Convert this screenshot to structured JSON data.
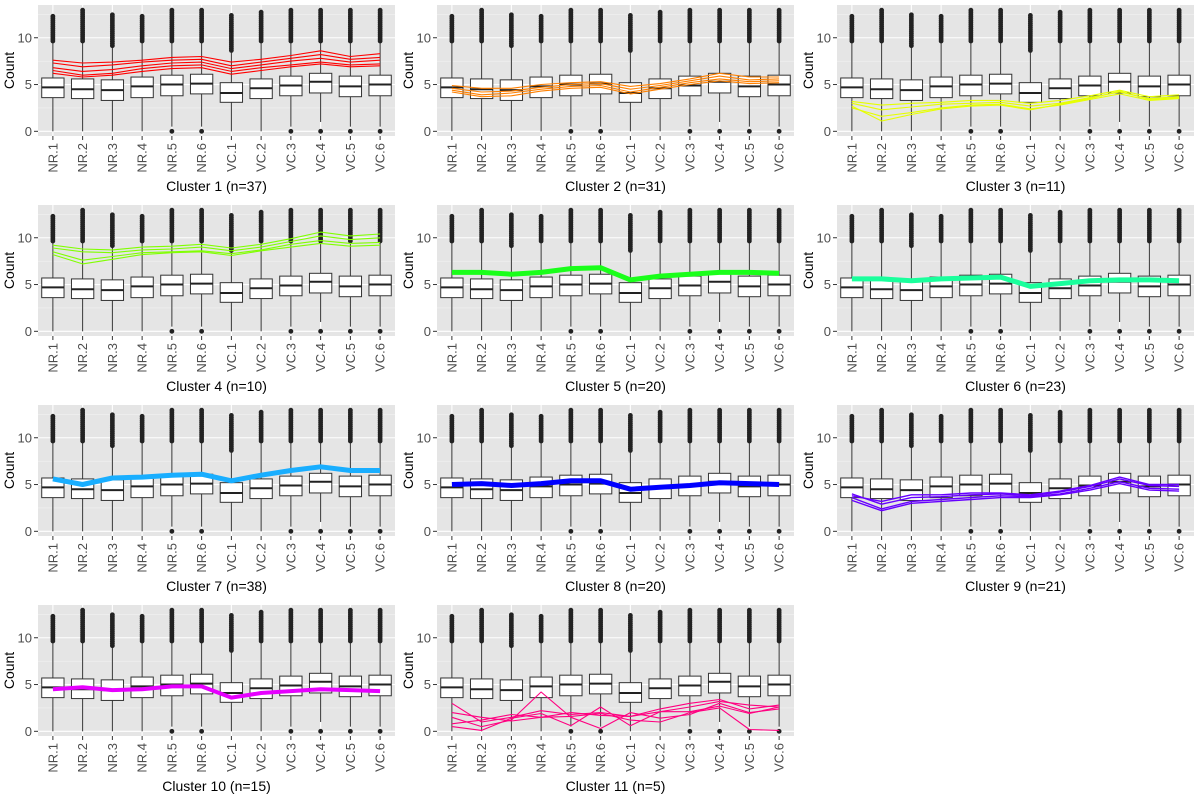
{
  "chart_data": {
    "type": "line",
    "layout": "small-multiples-grid",
    "grid": true,
    "ylabel": "Count",
    "categories": [
      "NR.1",
      "NR.2",
      "NR.3",
      "NR.4",
      "NR.5",
      "NR.6",
      "VC.1",
      "VC.2",
      "VC.3",
      "VC.4",
      "VC.5",
      "VC.6"
    ],
    "ylim": [
      -0.5,
      13.5
    ],
    "yticks": [
      0,
      5,
      10
    ],
    "boxplot_background": {
      "q1": [
        3.6,
        3.5,
        3.3,
        3.6,
        3.8,
        4.0,
        3.1,
        3.5,
        3.8,
        4.1,
        3.7,
        3.8
      ],
      "median": [
        4.7,
        4.5,
        4.4,
        4.8,
        5.0,
        5.1,
        4.1,
        4.6,
        4.9,
        5.3,
        4.8,
        5.0
      ],
      "q3": [
        5.7,
        5.6,
        5.5,
        5.8,
        6.0,
        6.1,
        5.2,
        5.6,
        5.9,
        6.2,
        5.9,
        6.0
      ],
      "whisker_low": [
        0,
        0,
        0,
        0,
        0.5,
        0.5,
        0,
        0,
        0.5,
        1.0,
        0.5,
        0.5
      ],
      "whisker_high": [
        9.5,
        9.5,
        9.0,
        9.5,
        9.5,
        9.5,
        8.5,
        9.5,
        9.5,
        9.5,
        9.5,
        9.5
      ],
      "outlier_low": [
        null,
        null,
        null,
        null,
        0,
        0,
        null,
        null,
        0,
        0,
        0,
        0
      ],
      "outlier_max": [
        12.5,
        13.0,
        12.5,
        12.5,
        13.0,
        13.0,
        12.5,
        12.8,
        13.0,
        13.0,
        13.0,
        13.0
      ]
    },
    "panels": [
      {
        "xlabel": "Cluster 1 (n=37)",
        "color": "#ff0000",
        "stroke": 1.1,
        "series": [
          {
            "values": [
              6.8,
              6.4,
              6.6,
              7.0,
              7.3,
              7.4,
              6.7,
              7.1,
              7.5,
              7.8,
              7.4,
              7.6
            ]
          },
          {
            "values": [
              7.3,
              6.9,
              7.1,
              7.4,
              7.6,
              7.7,
              7.0,
              7.4,
              7.8,
              8.2,
              7.7,
              7.9
            ]
          },
          {
            "values": [
              6.5,
              6.0,
              6.2,
              6.7,
              7.0,
              7.1,
              6.4,
              6.8,
              7.1,
              7.4,
              7.1,
              7.2
            ]
          },
          {
            "values": [
              7.6,
              7.3,
              7.4,
              7.6,
              7.9,
              8.0,
              7.4,
              7.7,
              8.1,
              8.6,
              8.0,
              8.3
            ]
          },
          {
            "values": [
              6.2,
              5.8,
              6.0,
              6.4,
              6.7,
              6.8,
              6.1,
              6.5,
              6.9,
              7.2,
              6.9,
              7.0
            ]
          }
        ]
      },
      {
        "xlabel": "Cluster 2 (n=31)",
        "color": "#ff8000",
        "stroke": 1.1,
        "series": [
          {
            "values": [
              4.6,
              4.2,
              4.3,
              4.7,
              5.0,
              5.1,
              4.5,
              4.9,
              5.4,
              5.9,
              5.5,
              5.6
            ]
          },
          {
            "values": [
              4.4,
              3.9,
              4.1,
              4.5,
              4.8,
              4.9,
              4.2,
              4.7,
              5.2,
              5.6,
              5.3,
              5.4
            ]
          },
          {
            "values": [
              4.9,
              4.6,
              4.6,
              5.0,
              5.2,
              5.3,
              4.8,
              5.1,
              5.6,
              6.2,
              5.8,
              5.8
            ]
          },
          {
            "values": [
              4.2,
              3.7,
              3.8,
              4.3,
              4.6,
              4.7,
              4.0,
              4.5,
              5.0,
              5.4,
              5.1,
              5.2
            ]
          }
        ]
      },
      {
        "xlabel": "Cluster 3 (n=11)",
        "color": "#e6ff00",
        "stroke": 1.1,
        "series": [
          {
            "values": [
              3.0,
              2.3,
              2.6,
              2.9,
              3.0,
              3.1,
              2.7,
              3.0,
              3.6,
              4.2,
              3.5,
              3.7
            ]
          },
          {
            "values": [
              2.5,
              1.6,
              2.0,
              2.5,
              2.8,
              2.9,
              2.4,
              2.8,
              3.4,
              4.0,
              3.3,
              3.5
            ]
          },
          {
            "values": [
              3.2,
              2.8,
              3.0,
              3.1,
              3.3,
              3.3,
              3.0,
              3.3,
              3.8,
              4.4,
              3.7,
              3.9
            ]
          },
          {
            "values": [
              2.7,
              1.1,
              1.8,
              2.4,
              2.7,
              2.8,
              2.3,
              2.9,
              3.5,
              4.3,
              3.4,
              3.6
            ]
          }
        ]
      },
      {
        "xlabel": "Cluster 4 (n=10)",
        "color": "#80ff00",
        "stroke": 1.1,
        "series": [
          {
            "values": [
              8.9,
              8.5,
              8.4,
              8.7,
              8.8,
              9.0,
              8.6,
              9.0,
              9.6,
              10.2,
              9.8,
              10.0
            ]
          },
          {
            "values": [
              9.2,
              8.8,
              8.7,
              9.0,
              9.1,
              9.3,
              8.9,
              9.3,
              9.9,
              10.6,
              10.2,
              10.4
            ]
          },
          {
            "values": [
              8.5,
              7.6,
              8.0,
              8.4,
              8.5,
              8.6,
              8.3,
              8.7,
              9.3,
              9.7,
              9.4,
              9.5
            ]
          },
          {
            "values": [
              8.2,
              7.2,
              7.7,
              8.2,
              8.4,
              8.5,
              8.1,
              8.6,
              9.0,
              9.4,
              9.1,
              9.2
            ]
          }
        ]
      },
      {
        "xlabel": "Cluster 5 (n=20)",
        "color": "#1aff1a",
        "stroke": 5,
        "series": [
          {
            "values": [
              6.3,
              6.3,
              6.1,
              6.3,
              6.7,
              6.8,
              5.5,
              5.9,
              6.1,
              6.3,
              6.3,
              6.2
            ]
          }
        ]
      },
      {
        "xlabel": "Cluster 6 (n=23)",
        "color": "#1aff9c",
        "stroke": 5,
        "series": [
          {
            "values": [
              5.6,
              5.6,
              5.4,
              5.6,
              5.7,
              5.8,
              4.8,
              5.1,
              5.4,
              5.5,
              5.5,
              5.4
            ]
          }
        ]
      },
      {
        "xlabel": "Cluster 7 (n=38)",
        "color": "#19aeff",
        "stroke": 5,
        "series": [
          {
            "values": [
              5.6,
              5.0,
              5.7,
              5.8,
              6.0,
              6.1,
              5.4,
              6.0,
              6.5,
              6.9,
              6.5,
              6.5
            ]
          }
        ]
      },
      {
        "xlabel": "Cluster 8 (n=20)",
        "color": "#0000ff",
        "stroke": 5,
        "series": [
          {
            "values": [
              5.0,
              5.1,
              4.9,
              5.1,
              5.4,
              5.4,
              4.5,
              4.7,
              4.9,
              5.2,
              5.1,
              5.0
            ]
          }
        ]
      },
      {
        "xlabel": "Cluster 9 (n=21)",
        "color": "#6600ff",
        "stroke": 1.4,
        "series": [
          {
            "values": [
              4.0,
              2.9,
              3.6,
              3.7,
              3.9,
              4.0,
              3.8,
              4.2,
              4.8,
              5.6,
              4.9,
              4.8
            ]
          },
          {
            "values": [
              3.6,
              2.4,
              3.2,
              3.4,
              3.6,
              3.8,
              3.7,
              4.0,
              4.6,
              5.3,
              4.6,
              4.5
            ]
          },
          {
            "values": [
              3.3,
              2.2,
              3.0,
              3.2,
              3.4,
              3.6,
              3.6,
              3.9,
              4.4,
              5.1,
              4.4,
              4.3
            ]
          },
          {
            "values": [
              3.8,
              3.2,
              3.9,
              3.9,
              4.1,
              4.1,
              3.9,
              4.3,
              4.9,
              5.8,
              5.0,
              5.0
            ]
          }
        ]
      },
      {
        "xlabel": "Cluster 10 (n=15)",
        "color": "#e600ff",
        "stroke": 4,
        "series": [
          {
            "values": [
              4.5,
              4.7,
              4.4,
              4.5,
              4.8,
              4.8,
              3.6,
              4.1,
              4.3,
              4.5,
              4.4,
              4.3
            ]
          }
        ]
      },
      {
        "xlabel": "Cluster 11 (n=5)",
        "color": "#ff0080",
        "stroke": 1.1,
        "series": [
          {
            "values": [
              3.0,
              1.0,
              1.5,
              2.2,
              1.8,
              2.0,
              1.6,
              2.1,
              2.6,
              3.2,
              2.8,
              2.6
            ]
          },
          {
            "values": [
              1.5,
              0.5,
              1.2,
              4.2,
              1.5,
              0.3,
              2.0,
              1.4,
              1.8,
              3.0,
              2.0,
              2.4
            ]
          },
          {
            "values": [
              0.8,
              1.2,
              1.8,
              1.5,
              1.6,
              1.9,
              1.2,
              1.0,
              2.0,
              2.5,
              0.2,
              0.1
            ]
          },
          {
            "values": [
              0.5,
              0.1,
              1.4,
              1.9,
              0.6,
              2.6,
              0.6,
              2.1,
              2.1,
              2.7,
              1.9,
              2.6
            ]
          },
          {
            "values": [
              2.0,
              1.5,
              1.1,
              1.5,
              2.0,
              1.7,
              1.6,
              2.4,
              3.0,
              3.4,
              2.4,
              2.8
            ]
          }
        ]
      }
    ]
  }
}
